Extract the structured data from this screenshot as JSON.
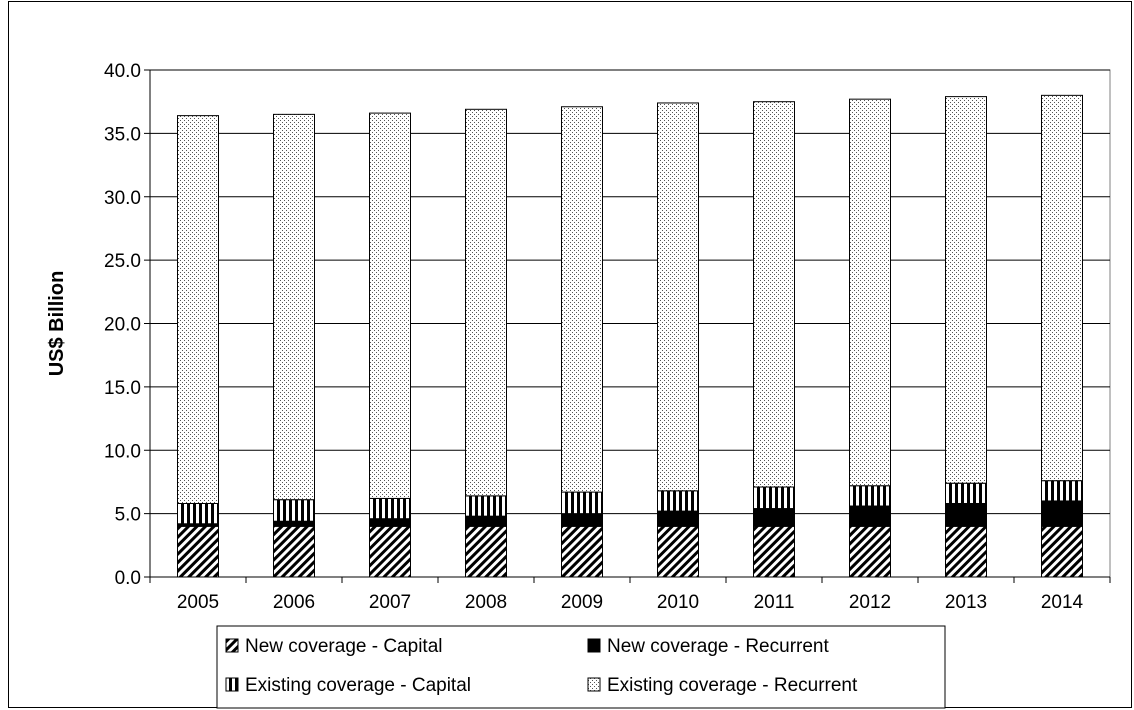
{
  "chart_data": {
    "type": "bar",
    "stacked": true,
    "title": "",
    "xlabel": "",
    "ylabel": "US$ Billion",
    "ylim": [
      0,
      40
    ],
    "yticks": [
      "0.0",
      "5.0",
      "10.0",
      "15.0",
      "20.0",
      "25.0",
      "30.0",
      "35.0",
      "40.0"
    ],
    "grid": "horizontal",
    "legend_position": "bottom",
    "categories": [
      "2005",
      "2006",
      "2007",
      "2008",
      "2009",
      "2010",
      "2011",
      "2012",
      "2013",
      "2014"
    ],
    "series": [
      {
        "name": "New coverage - Capital",
        "pattern": "diagonal-hatch",
        "values": [
          4.0,
          4.0,
          4.0,
          4.0,
          4.0,
          4.0,
          4.0,
          4.0,
          4.0,
          4.0
        ]
      },
      {
        "name": "New coverage - Recurrent",
        "pattern": "solid-black",
        "values": [
          0.2,
          0.4,
          0.6,
          0.8,
          1.0,
          1.2,
          1.4,
          1.6,
          1.8,
          2.0
        ]
      },
      {
        "name": "Existing coverage - Capital",
        "pattern": "vertical-stripes",
        "values": [
          1.6,
          1.7,
          1.6,
          1.6,
          1.7,
          1.6,
          1.7,
          1.6,
          1.6,
          1.6
        ]
      },
      {
        "name": "Existing coverage - Recurrent",
        "pattern": "dots",
        "values": [
          30.6,
          30.4,
          30.4,
          30.5,
          30.4,
          30.6,
          30.4,
          30.5,
          30.5,
          30.4
        ]
      }
    ]
  }
}
